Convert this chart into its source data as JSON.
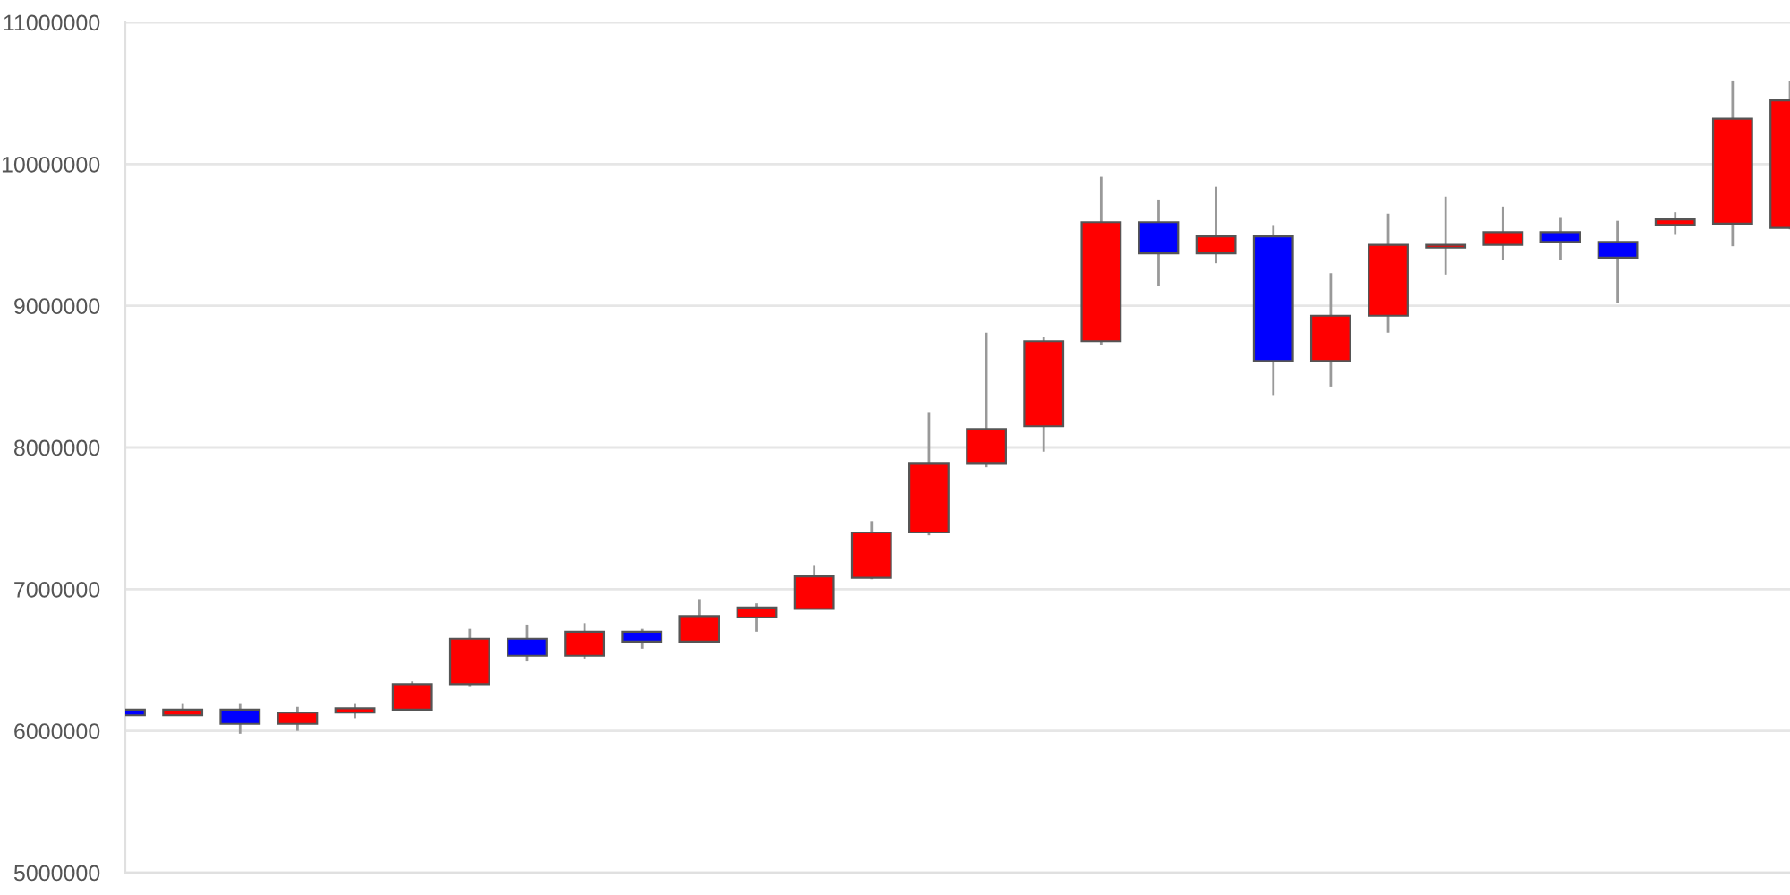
{
  "chart_data": {
    "type": "candlestick",
    "categories": [
      null,
      null,
      null,
      null,
      null,
      null,
      null,
      null,
      null,
      null,
      null,
      null,
      null,
      null,
      null,
      null,
      null,
      null,
      null,
      null,
      null,
      null,
      null,
      null,
      null,
      null,
      null,
      null,
      null,
      null
    ],
    "ohlc": [
      [
        6150000,
        6150000,
        6110000,
        6110000
      ],
      [
        6110000,
        6190000,
        6110000,
        6150000
      ],
      [
        6150000,
        6190000,
        5980000,
        6050000
      ],
      [
        6050000,
        6170000,
        6000000,
        6130000
      ],
      [
        6130000,
        6190000,
        6090000,
        6160000
      ],
      [
        6150000,
        6350000,
        6150000,
        6330000
      ],
      [
        6330000,
        6720000,
        6310000,
        6650000
      ],
      [
        6650000,
        6750000,
        6490000,
        6530000
      ],
      [
        6530000,
        6760000,
        6510000,
        6700000
      ],
      [
        6700000,
        6720000,
        6580000,
        6630000
      ],
      [
        6630000,
        6930000,
        6630000,
        6810000
      ],
      [
        6800000,
        6900000,
        6700000,
        6870000
      ],
      [
        6860000,
        7170000,
        6860000,
        7090000
      ],
      [
        7080000,
        7480000,
        7070000,
        7400000
      ],
      [
        7400000,
        8250000,
        7380000,
        7890000
      ],
      [
        7890000,
        8810000,
        7860000,
        8130000
      ],
      [
        8150000,
        8780000,
        7970000,
        8750000
      ],
      [
        8750000,
        9910000,
        8720000,
        9590000
      ],
      [
        9590000,
        9750000,
        9140000,
        9370000
      ],
      [
        9370000,
        9840000,
        9300000,
        9490000
      ],
      [
        9490000,
        9570000,
        8370000,
        8610000
      ],
      [
        8610000,
        9230000,
        8430000,
        8930000
      ],
      [
        8930000,
        9650000,
        8810000,
        9430000
      ],
      [
        9410000,
        9770000,
        9220000,
        9430000
      ],
      [
        9430000,
        9700000,
        9320000,
        9520000
      ],
      [
        9520000,
        9620000,
        9320000,
        9450000
      ],
      [
        9450000,
        9600000,
        9020000,
        9340000
      ],
      [
        9570000,
        9660000,
        9500000,
        9610000
      ],
      [
        9580000,
        10590000,
        9420000,
        10320000
      ],
      [
        9550000,
        10590000,
        9540000,
        10450000
      ]
    ],
    "colors": [
      "#0000ff",
      "#ff0000",
      "#0000ff",
      "#ff0000",
      "#ff0000",
      "#ff0000",
      "#ff0000",
      "#0000ff",
      "#ff0000",
      "#0000ff",
      "#ff0000",
      "#ff0000",
      "#ff0000",
      "#ff0000",
      "#ff0000",
      "#ff0000",
      "#ff0000",
      "#ff0000",
      "#0000ff",
      "#ff0000",
      "#0000ff",
      "#ff0000",
      "#ff0000",
      "#ff0000",
      "#ff0000",
      "#0000ff",
      "#0000ff",
      "#ff0000",
      "#ff0000",
      "#ff0000"
    ],
    "ylim": [
      5000000,
      11000000
    ],
    "yticks": [
      5000000,
      6000000,
      7000000,
      8000000,
      9000000,
      10000000,
      11000000
    ],
    "grid": "y"
  }
}
